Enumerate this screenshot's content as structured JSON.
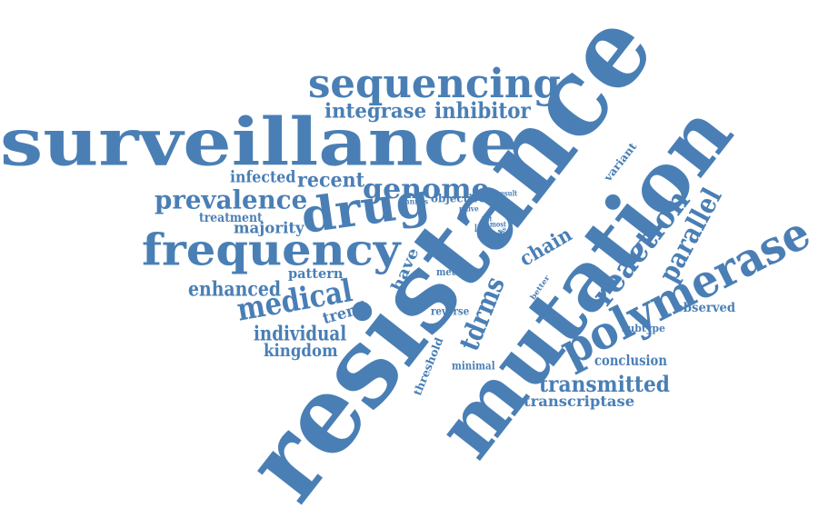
{
  "cloud": {
    "color": "#4a7fb5",
    "words": {
      "resistance": "resistance",
      "mutation": "mutation",
      "surveillance": "surveillance",
      "sequencing": "sequencing",
      "frequency": "frequency",
      "drug": "drug",
      "polymerase": "polymerase",
      "genome": "genome",
      "prevalence": "prevalence",
      "medical": "medical",
      "inhibitor": "inhibitor",
      "integrase": "integrase",
      "reaction": "reaction",
      "parallel": "parallel",
      "transmitted": "transmitted",
      "enhanced": "enhanced",
      "recent": "recent",
      "tdrms": "tdrms",
      "infected": "infected",
      "individual": "individual",
      "kingdom": "kingdom",
      "chain": "chain",
      "majority": "majority",
      "treatment": "treatment",
      "pattern": "pattern",
      "have": "have",
      "trend": "trend",
      "conclusion": "conclusion",
      "transcriptase": "transcriptase",
      "observed": "observed",
      "subtype": "subtype",
      "minimal": "minimal",
      "threshold": "threshold",
      "reverse": "reverse",
      "method": "method",
      "objective": "objective",
      "variant": "variant",
      "better": "better",
      "nnrtis": "nnrtis",
      "naive": "naive",
      "result": "result",
      "line": "line",
      "most": "most",
      "effect": "effect",
      "nrtis": "nrtis",
      "list": "list",
      "low": "low"
    }
  }
}
